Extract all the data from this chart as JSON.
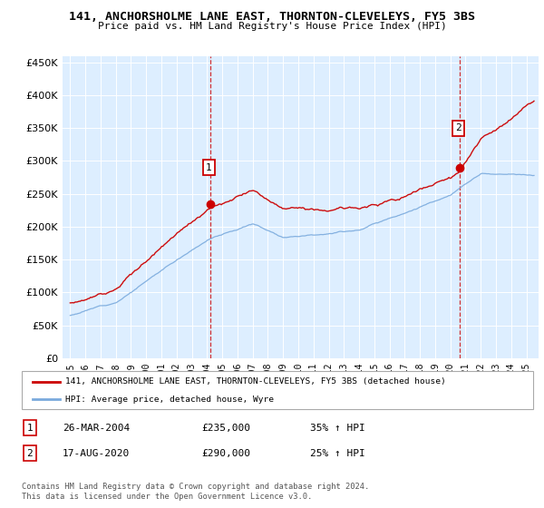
{
  "title": "141, ANCHORSHOLME LANE EAST, THORNTON-CLEVELEYS, FY5 3BS",
  "subtitle": "Price paid vs. HM Land Registry's House Price Index (HPI)",
  "legend_line1": "141, ANCHORSHOLME LANE EAST, THORNTON-CLEVELEYS, FY5 3BS (detached house)",
  "legend_line2": "HPI: Average price, detached house, Wyre",
  "footnote": "Contains HM Land Registry data © Crown copyright and database right 2024.\nThis data is licensed under the Open Government Licence v3.0.",
  "annotation1_label": "1",
  "annotation1_date": "26-MAR-2004",
  "annotation1_price": "£235,000",
  "annotation1_hpi": "35% ↑ HPI",
  "annotation2_label": "2",
  "annotation2_date": "17-AUG-2020",
  "annotation2_price": "£290,000",
  "annotation2_hpi": "25% ↑ HPI",
  "red_color": "#cc0000",
  "blue_color": "#7aaadd",
  "chart_bg": "#ddeeff",
  "annotation_color": "#cc0000",
  "ylim_min": 0,
  "ylim_max": 460000,
  "yticks": [
    0,
    50000,
    100000,
    150000,
    200000,
    250000,
    300000,
    350000,
    400000,
    450000
  ],
  "sale1_year": 2004.23,
  "sale1_price": 235000,
  "sale2_year": 2020.63,
  "sale2_price": 290000
}
